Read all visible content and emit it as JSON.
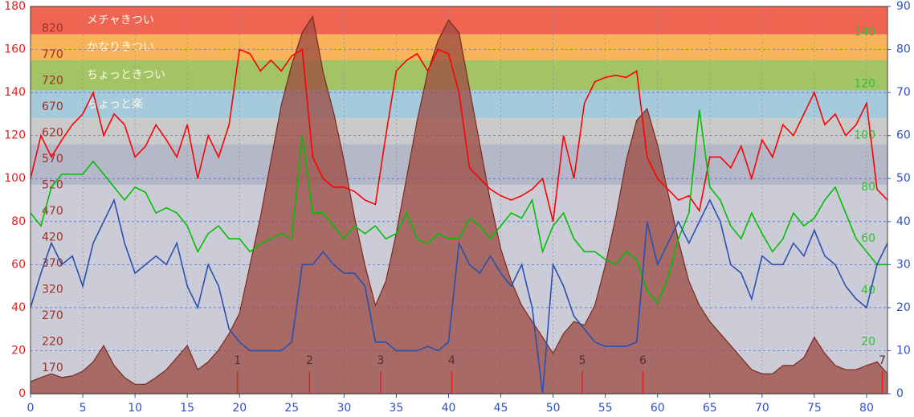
{
  "chart_data": {
    "type": "line",
    "xlim": [
      0,
      82
    ],
    "xticks": [
      0,
      5,
      10,
      15,
      20,
      25,
      30,
      35,
      40,
      45,
      50,
      55,
      60,
      65,
      70,
      75,
      80
    ],
    "ylim": [
      0,
      180
    ],
    "yticks": [
      0,
      20,
      40,
      60,
      80,
      100,
      120,
      140,
      160,
      180
    ],
    "y2lim": [
      0,
      90
    ],
    "y2ticks": [
      0,
      10,
      20,
      30,
      40,
      50,
      60,
      70,
      80,
      90
    ],
    "elevlim": [
      121,
      862
    ],
    "elevticks": [
      170,
      220,
      270,
      320,
      370,
      420,
      470,
      520,
      570,
      620,
      670,
      720,
      770,
      820
    ],
    "greenlim": [
      0,
      150
    ],
    "greenticks": [
      20,
      40,
      60,
      80,
      100,
      120,
      140
    ],
    "grid": true,
    "zones": [
      {
        "label": "メチャきつい",
        "from": 167,
        "to": 180,
        "color": "#f06452"
      },
      {
        "label": "かなりきつい",
        "from": 155,
        "to": 167,
        "color": "#f8b45a"
      },
      {
        "label": "ちょっときつい",
        "from": 141,
        "to": 155,
        "color": "#a2c464"
      },
      {
        "label": "ちょっと楽",
        "from": 128,
        "to": 141,
        "color": "#a4cadc"
      },
      {
        "from": 116,
        "to": 128,
        "color": "#cacaca"
      },
      {
        "from": 97,
        "to": 116,
        "color": "#b4b8c8"
      },
      {
        "from": 0,
        "to": 97,
        "color": "#ccccd8"
      }
    ],
    "markers": [
      {
        "label": "1",
        "x": 19.8
      },
      {
        "label": "2",
        "x": 26.7
      },
      {
        "label": "3",
        "x": 33.5
      },
      {
        "label": "4",
        "x": 40.3
      },
      {
        "label": "5",
        "x": 52.8
      },
      {
        "label": "6",
        "x": 58.6
      },
      {
        "label": "7",
        "x": 81.5
      }
    ],
    "x": [
      0,
      1,
      2,
      3,
      4,
      5,
      6,
      7,
      8,
      9,
      10,
      11,
      12,
      13,
      14,
      15,
      16,
      17,
      18,
      19,
      20,
      21,
      22,
      23,
      24,
      25,
      26,
      27,
      28,
      29,
      30,
      31,
      32,
      33,
      34,
      35,
      36,
      37,
      38,
      39,
      40,
      41,
      42,
      43,
      44,
      45,
      46,
      47,
      48,
      49,
      50,
      51,
      52,
      53,
      54,
      55,
      56,
      57,
      58,
      59,
      60,
      61,
      62,
      63,
      64,
      65,
      66,
      67,
      68,
      69,
      70,
      71,
      72,
      73,
      74,
      75,
      76,
      77,
      78,
      79,
      80,
      81,
      82
    ],
    "series": [
      {
        "color": "#7a2a1a",
        "fill": "#9c4a40",
        "axis": "elev",
        "values": [
          144,
          152,
          159,
          152,
          155,
          164,
          182,
          213,
          175,
          152,
          139,
          139,
          152,
          167,
          190,
          213,
          167,
          182,
          205,
          236,
          275,
          367,
          459,
          567,
          674,
          751,
          812,
          843,
          736,
          659,
          567,
          459,
          367,
          290,
          336,
          428,
          536,
          644,
          736,
          797,
          836,
          812,
          705,
          597,
          490,
          398,
          336,
          290,
          259,
          229,
          198,
          236,
          259,
          252,
          290,
          367,
          459,
          567,
          644,
          666,
          597,
          505,
          413,
          336,
          290,
          259,
          236,
          213,
          190,
          167,
          159,
          159,
          175,
          175,
          190,
          229,
          198,
          175,
          167,
          167,
          175,
          182,
          159
        ]
      },
      {
        "color": "#ff0000",
        "axis": "y",
        "values": [
          100,
          120,
          110,
          118,
          125,
          130,
          140,
          120,
          130,
          125,
          110,
          115,
          125,
          118,
          110,
          125,
          100,
          120,
          110,
          125,
          160,
          158,
          150,
          155,
          150,
          157,
          160,
          110,
          100,
          96,
          96,
          94,
          90,
          88,
          120,
          150,
          155,
          158,
          150,
          160,
          158,
          140,
          105,
          100,
          95,
          92,
          90,
          92,
          95,
          100,
          80,
          120,
          100,
          135,
          145,
          147,
          148,
          147,
          150,
          110,
          100,
          95,
          90,
          92,
          85,
          110,
          110,
          105,
          115,
          100,
          118,
          110,
          125,
          120,
          130,
          140,
          125,
          130,
          120,
          125,
          135,
          95,
          90
        ]
      },
      {
        "color": "#00c000",
        "axis": "green",
        "values": [
          70,
          65,
          80,
          85,
          85,
          85,
          90,
          85,
          80,
          75,
          80,
          78,
          70,
          72,
          70,
          65,
          55,
          62,
          65,
          60,
          60,
          55,
          58,
          60,
          62,
          60,
          100,
          70,
          70,
          65,
          60,
          65,
          62,
          65,
          60,
          62,
          70,
          60,
          58,
          62,
          60,
          60,
          68,
          65,
          60,
          65,
          70,
          68,
          75,
          55,
          65,
          70,
          60,
          55,
          55,
          52,
          50,
          55,
          52,
          40,
          35,
          45,
          60,
          70,
          110,
          80,
          75,
          65,
          60,
          70,
          62,
          55,
          60,
          70,
          65,
          68,
          75,
          80,
          70,
          60,
          55,
          50,
          50
        ]
      },
      {
        "color": "#2850b0",
        "axis": "y2",
        "values": [
          20,
          28,
          35,
          30,
          32,
          25,
          35,
          40,
          45,
          35,
          28,
          30,
          32,
          30,
          35,
          25,
          20,
          30,
          25,
          15,
          12,
          10,
          10,
          10,
          10,
          12,
          30,
          30,
          33,
          30,
          28,
          28,
          25,
          12,
          12,
          10,
          10,
          10,
          11,
          10,
          12,
          35,
          30,
          28,
          32,
          28,
          25,
          30,
          20,
          0,
          30,
          25,
          18,
          15,
          12,
          11,
          11,
          11,
          12,
          40,
          30,
          35,
          40,
          35,
          40,
          45,
          40,
          30,
          28,
          22,
          32,
          30,
          30,
          35,
          32,
          38,
          32,
          30,
          25,
          22,
          20,
          30,
          35
        ]
      }
    ]
  }
}
